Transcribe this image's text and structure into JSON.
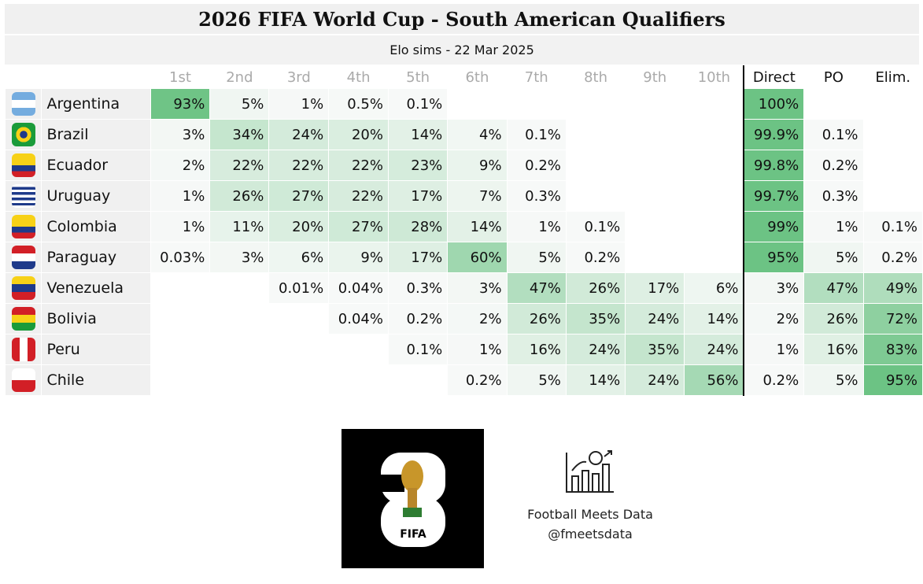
{
  "title": "2026 FIFA World Cup - South American Qualifiers",
  "subtitle": "Elo sims - 22 Mar 2025",
  "chart_data": {
    "type": "table",
    "columns": [
      "1st",
      "2nd",
      "3rd",
      "4th",
      "5th",
      "6th",
      "7th",
      "8th",
      "9th",
      "10th",
      "Direct",
      "PO",
      "Elim."
    ],
    "rows": [
      {
        "team": "Argentina",
        "flag": "argentina-flag",
        "values": [
          "93%",
          "5%",
          "1%",
          "0.5%",
          "0.1%",
          "",
          "",
          "",
          "",
          "",
          "100%",
          "",
          ""
        ]
      },
      {
        "team": "Brazil",
        "flag": "brazil-flag",
        "values": [
          "3%",
          "34%",
          "24%",
          "20%",
          "14%",
          "4%",
          "0.1%",
          "",
          "",
          "",
          "99.9%",
          "0.1%",
          ""
        ]
      },
      {
        "team": "Ecuador",
        "flag": "ecuador-flag",
        "values": [
          "2%",
          "22%",
          "22%",
          "22%",
          "23%",
          "9%",
          "0.2%",
          "",
          "",
          "",
          "99.8%",
          "0.2%",
          ""
        ]
      },
      {
        "team": "Uruguay",
        "flag": "uruguay-flag",
        "values": [
          "1%",
          "26%",
          "27%",
          "22%",
          "17%",
          "7%",
          "0.3%",
          "",
          "",
          "",
          "99.7%",
          "0.3%",
          ""
        ]
      },
      {
        "team": "Colombia",
        "flag": "colombia-flag",
        "values": [
          "1%",
          "11%",
          "20%",
          "27%",
          "28%",
          "14%",
          "1%",
          "0.1%",
          "",
          "",
          "99%",
          "1%",
          "0.1%"
        ]
      },
      {
        "team": "Paraguay",
        "flag": "paraguay-flag",
        "values": [
          "0.03%",
          "3%",
          "6%",
          "9%",
          "17%",
          "60%",
          "5%",
          "0.2%",
          "",
          "",
          "95%",
          "5%",
          "0.2%"
        ]
      },
      {
        "team": "Venezuela",
        "flag": "venezuela-flag",
        "values": [
          "",
          "",
          "0.01%",
          "0.04%",
          "0.3%",
          "3%",
          "47%",
          "26%",
          "17%",
          "6%",
          "3%",
          "47%",
          "49%"
        ]
      },
      {
        "team": "Bolivia",
        "flag": "bolivia-flag",
        "values": [
          "",
          "",
          "",
          "0.04%",
          "0.2%",
          "2%",
          "26%",
          "35%",
          "24%",
          "14%",
          "2%",
          "26%",
          "72%"
        ]
      },
      {
        "team": "Peru",
        "flag": "peru-flag",
        "values": [
          "",
          "",
          "",
          "",
          "0.1%",
          "1%",
          "16%",
          "24%",
          "35%",
          "24%",
          "1%",
          "16%",
          "83%"
        ]
      },
      {
        "team": "Chile",
        "flag": "chile-flag",
        "values": [
          "",
          "",
          "",
          "",
          "",
          "0.2%",
          "5%",
          "14%",
          "24%",
          "56%",
          "0.2%",
          "5%",
          "95%"
        ]
      }
    ],
    "color_scale": {
      "low": "#f7f9f8",
      "high": "#6cc384"
    }
  },
  "logo": {
    "text": "FIFA",
    "digits": "26"
  },
  "brand": {
    "name": "Football Meets Data",
    "handle": "@fmeetsdata"
  }
}
